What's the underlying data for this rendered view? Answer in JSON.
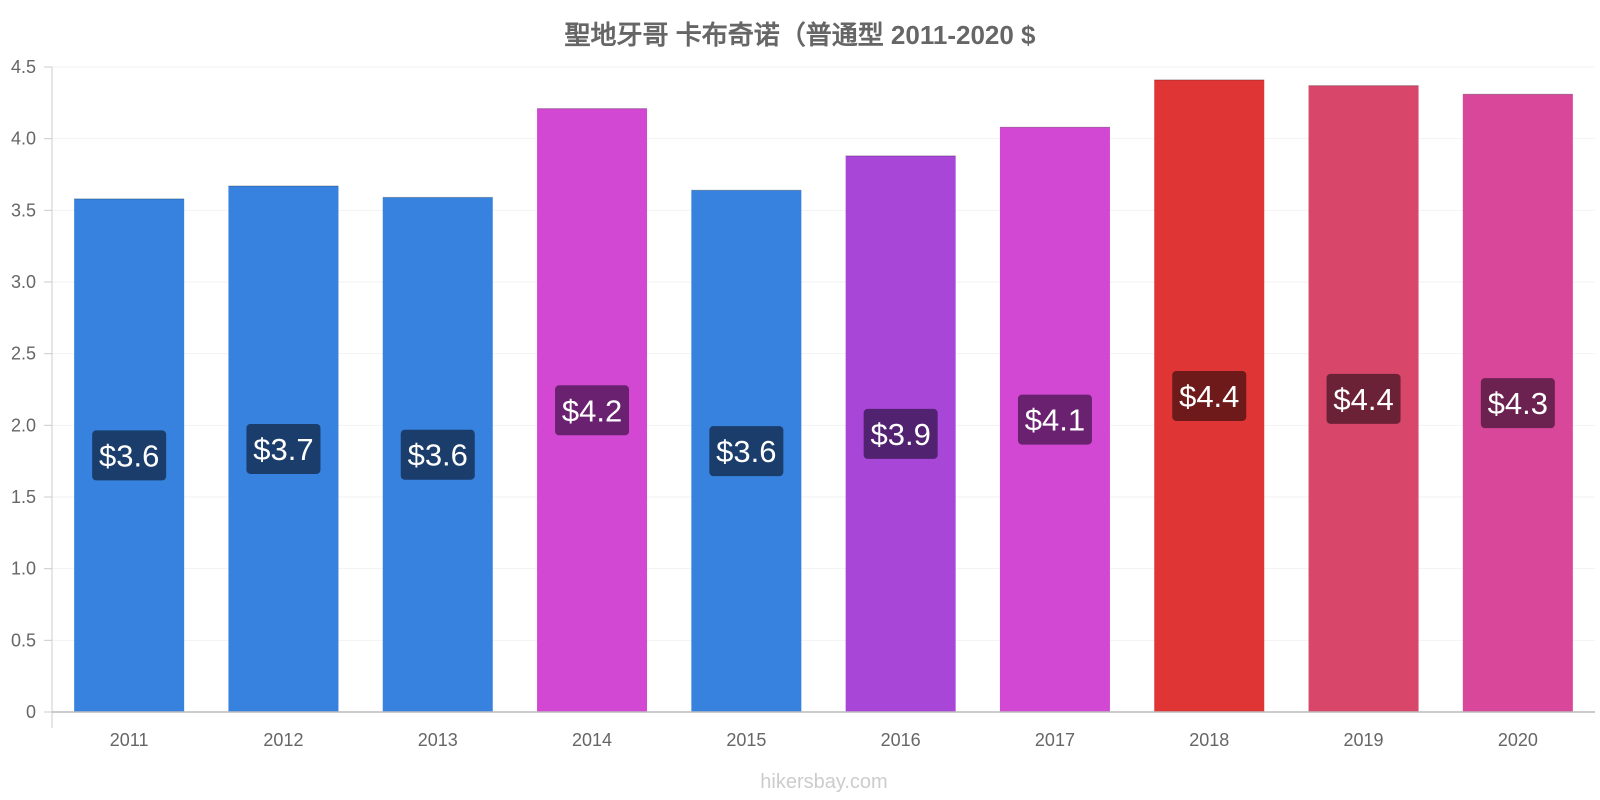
{
  "chart_data": {
    "type": "bar",
    "title": "聖地牙哥 卡布奇诺（普通型 2011-2020 $",
    "categories": [
      "2011",
      "2012",
      "2013",
      "2014",
      "2015",
      "2016",
      "2017",
      "2018",
      "2019",
      "2020"
    ],
    "values": [
      3.58,
      3.67,
      3.59,
      4.21,
      3.64,
      3.88,
      4.08,
      4.41,
      4.37,
      4.31
    ],
    "data_labels": [
      "$3.6",
      "$3.7",
      "$3.6",
      "$4.2",
      "$3.6",
      "$3.9",
      "$4.1",
      "$4.4",
      "$4.4",
      "$4.3"
    ],
    "bar_colors": [
      "#3682de",
      "#3682de",
      "#3682de",
      "#d348d3",
      "#3682de",
      "#a846d8",
      "#d348d3",
      "#e03535",
      "#d8476a",
      "#d8479a"
    ],
    "label_bg_colors": [
      "#1b3d6b",
      "#1b3d6b",
      "#1b3d6b",
      "#6a2270",
      "#1b3d6b",
      "#512270",
      "#6a2270",
      "#6f1a1a",
      "#6c2236",
      "#6c2250"
    ],
    "y_ticks": [
      "0",
      "0.5",
      "1.0",
      "1.5",
      "2.0",
      "2.5",
      "3.0",
      "3.5",
      "4.0",
      "4.5"
    ],
    "ylim": [
      0,
      4.5
    ],
    "xlabel": "",
    "ylabel": "",
    "grid": true
  },
  "footer": {
    "watermark": "hikersbay.com"
  }
}
